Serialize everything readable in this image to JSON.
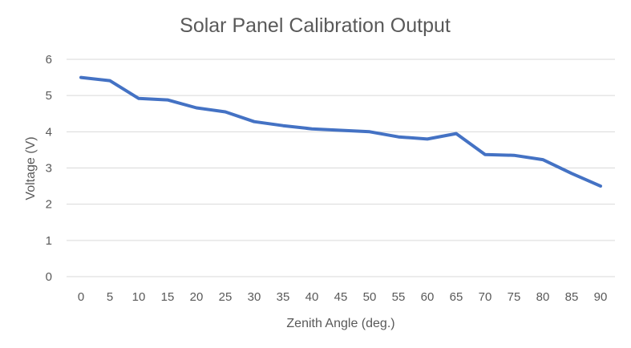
{
  "chart_data": {
    "type": "line",
    "title": "Solar Panel Calibration Output",
    "xlabel": "Zenith Angle (deg.)",
    "ylabel": "Voltage (V)",
    "categories": [
      "0",
      "5",
      "10",
      "15",
      "20",
      "25",
      "30",
      "35",
      "40",
      "45",
      "50",
      "55",
      "60",
      "65",
      "70",
      "75",
      "80",
      "85",
      "90"
    ],
    "ylim": [
      0,
      6
    ],
    "yticks": [
      "0",
      "1",
      "2",
      "3",
      "4",
      "5",
      "6"
    ],
    "grid": true,
    "legend": "none",
    "series": [
      {
        "values": [
          5.5,
          5.41,
          4.92,
          4.88,
          4.66,
          4.55,
          4.28,
          4.17,
          4.08,
          4.04,
          4.0,
          3.86,
          3.8,
          3.95,
          3.37,
          3.35,
          3.23,
          2.85,
          2.5
        ],
        "color": "#4472c4"
      }
    ]
  }
}
